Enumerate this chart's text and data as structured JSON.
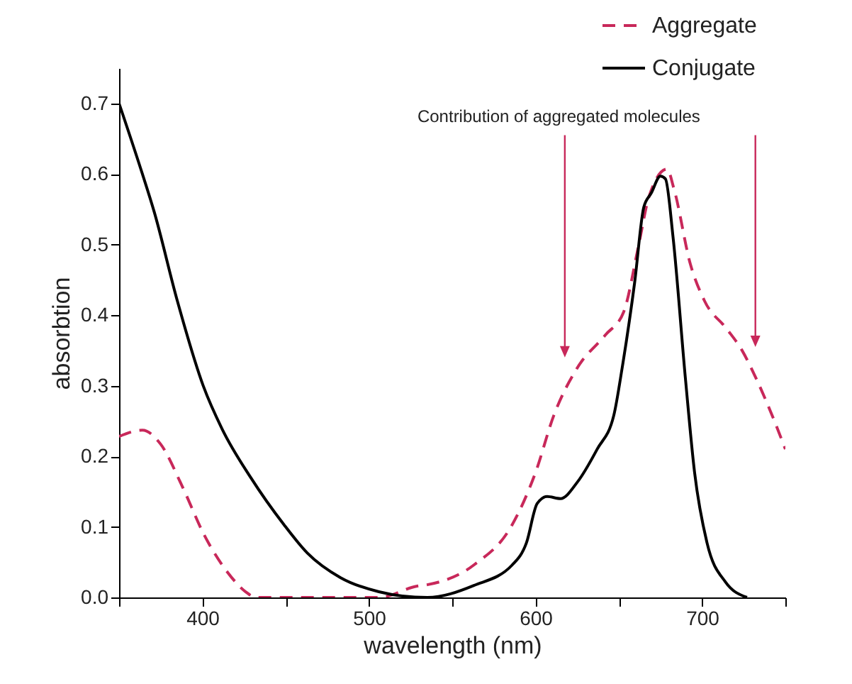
{
  "chart_data": {
    "type": "line",
    "xlabel": "wavelength (nm)",
    "ylabel": "absorbtion",
    "xlim": [
      350,
      750
    ],
    "ylim": [
      0,
      0.75
    ],
    "xticks": [
      {
        "value": 350,
        "label": null
      },
      400,
      {
        "value": 450,
        "label": null
      },
      500,
      {
        "value": 550,
        "label": null
      },
      600,
      {
        "value": 650,
        "label": null
      },
      700,
      {
        "value": 750,
        "label": null
      }
    ],
    "yticks": [
      {
        "value": 0,
        "label": "0.0"
      },
      0.1,
      0.2,
      0.3,
      0.4,
      0.5,
      0.6,
      0.7
    ],
    "grid": false,
    "legend": "top right",
    "annotations": [
      "Contribution of aggregated molecules"
    ],
    "series": [
      {
        "name": "Aggregate",
        "color": "#c8285a",
        "line_style": "dashed",
        "x": [
          350,
          364,
          375,
          388,
          401,
          415,
          426,
          432,
          506,
          529,
          535,
          563,
          586,
          600,
          611,
          625,
          642,
          653,
          662,
          668,
          679,
          683,
          693,
          701.5,
          715,
          724,
          732.5,
          741,
          750
        ],
        "values": [
          0.228,
          0.237,
          0.217,
          0.157,
          0.089,
          0.036,
          0.008,
          0,
          0,
          0.016,
          0.018,
          0.046,
          0.103,
          0.177,
          0.258,
          0.325,
          0.372,
          0.405,
          0.5,
          0.567,
          0.607,
          0.58,
          0.472,
          0.42,
          0.38,
          0.35,
          0.31,
          0.264,
          0.21
        ]
      },
      {
        "name": "Conjugate",
        "color": "#000000",
        "line_style": "solid",
        "x": [
          350,
          364,
          371,
          385,
          400.5,
          412,
          429,
          449,
          463,
          483,
          506,
          520,
          535,
          563,
          586,
          594.5,
          601,
          607,
          615,
          625,
          637,
          647,
          652,
          659.5,
          665,
          669.5,
          675,
          678,
          682.5,
          690,
          695.5,
          703,
          714,
          727
        ],
        "values": [
          0.7,
          0.6,
          0.547,
          0.42,
          0.3,
          0.238,
          0.17,
          0.103,
          0.063,
          0.028,
          0.008,
          0.002,
          0,
          0.017,
          0.046,
          0.077,
          0.133,
          0.143,
          0.14,
          0.163,
          0.21,
          0.258,
          0.325,
          0.446,
          0.553,
          0.573,
          0.597,
          0.593,
          0.512,
          0.31,
          0.177,
          0.077,
          0.022,
          0
        ]
      }
    ]
  }
}
